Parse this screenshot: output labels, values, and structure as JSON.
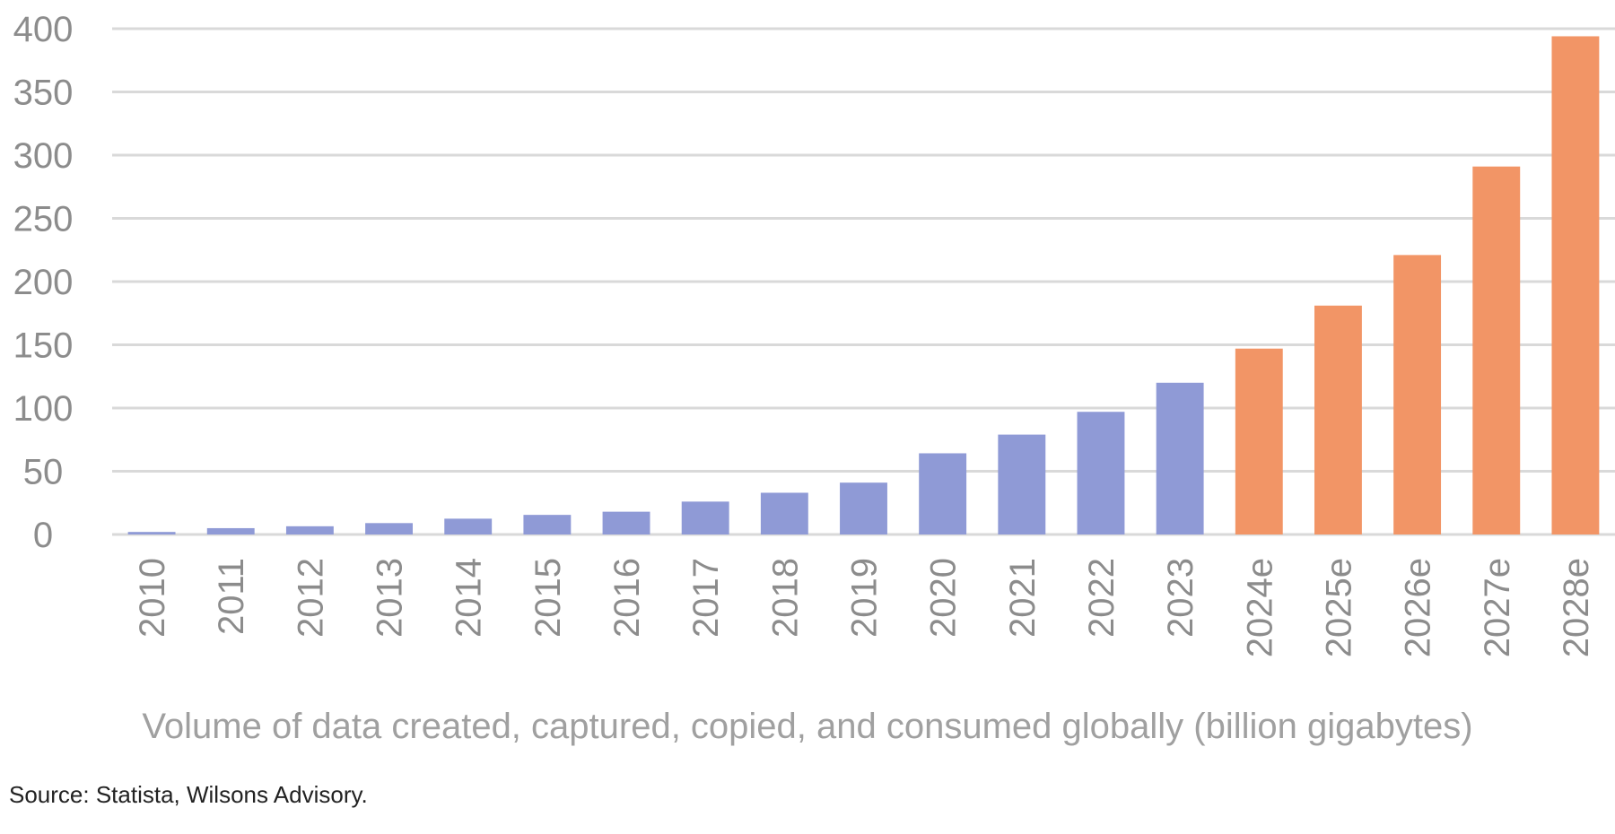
{
  "chart_data": {
    "type": "bar",
    "title": "",
    "caption": "Volume of data created, captured, copied, and consumed globally (billion gigabytes)",
    "source": "Source: Statista, Wilsons Advisory.",
    "xlabel": "",
    "ylabel": "",
    "ylim": [
      0,
      400
    ],
    "yticks": [
      0,
      50,
      100,
      150,
      200,
      250,
      300,
      350,
      400
    ],
    "grid": true,
    "legend": "none",
    "categories": [
      "2010",
      "2011",
      "2012",
      "2013",
      "2014",
      "2015",
      "2016",
      "2017",
      "2018",
      "2019",
      "2020",
      "2021",
      "2022",
      "2023",
      "2024e",
      "2025e",
      "2026e",
      "2027e",
      "2028e"
    ],
    "values": [
      2,
      5,
      6.5,
      9,
      12.5,
      15.5,
      18,
      26,
      33,
      41,
      64.2,
      79,
      97,
      120,
      147,
      181,
      221,
      291,
      394
    ],
    "estimate_flags": [
      false,
      false,
      false,
      false,
      false,
      false,
      false,
      false,
      false,
      false,
      false,
      false,
      false,
      false,
      true,
      true,
      true,
      true,
      true
    ],
    "colors": {
      "actual": "#8f9ad6",
      "estimate": "#f29566"
    }
  }
}
